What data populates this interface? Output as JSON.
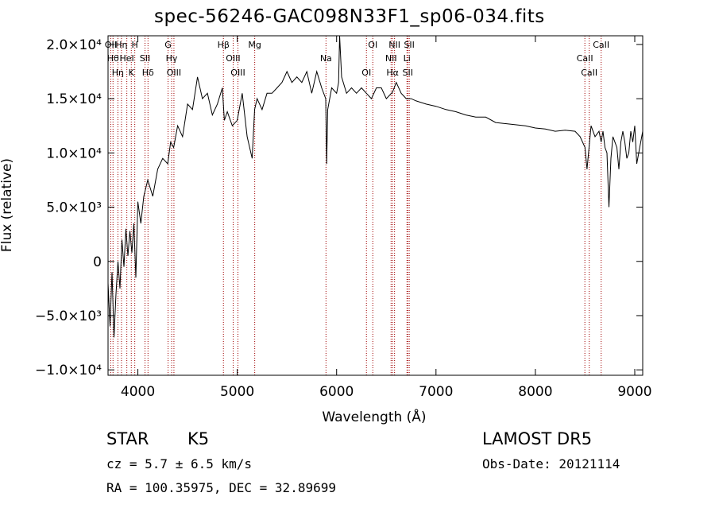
{
  "title": "spec-56246-GAC098N33F1_sp06-034.fits",
  "info": {
    "object_class": "STAR",
    "subclass": "K5",
    "cz": "cz = 5.7 ± 6.5 km/s",
    "radec": "RA = 100.35975, DEC =  32.89699",
    "survey": "LAMOST  DR5",
    "obs_date": "Obs-Date: 20121114"
  },
  "chart_data": {
    "type": "line",
    "xlabel": "Wavelength (Å)",
    "ylabel": "Flux (relative)",
    "xlim": [
      3700,
      9080
    ],
    "ylim": [
      -10500,
      20800
    ],
    "x_ticks": [
      4000,
      5000,
      6000,
      7000,
      8000,
      9000
    ],
    "x_tick_labels": [
      "4000",
      "5000",
      "6000",
      "7000",
      "8000",
      "9000"
    ],
    "y_ticks": [
      -10000,
      -5000,
      0,
      5000,
      10000,
      15000,
      20000
    ],
    "y_tick_labels": [
      "−1.0×10⁴",
      "−5.0×10³",
      "0",
      "5.0×10³",
      "1.0×10⁴",
      "1.5×10⁴",
      "2.0×10⁴"
    ],
    "line_color": "#000000",
    "marker_color": "#a00000",
    "series": [
      {
        "x": [
          3700,
          3720,
          3740,
          3760,
          3780,
          3800,
          3820,
          3840,
          3860,
          3880,
          3900,
          3920,
          3940,
          3960,
          3980,
          4000,
          4030,
          4060,
          4100,
          4150,
          4200,
          4250,
          4300,
          4330,
          4360,
          4400,
          4450,
          4500,
          4550,
          4600,
          4650,
          4700,
          4750,
          4800,
          4850,
          4870,
          4900,
          4950,
          5000,
          5050,
          5100,
          5150,
          5175,
          5200,
          5250,
          5300,
          5350,
          5400,
          5450,
          5500,
          5550,
          5600,
          5650,
          5700,
          5750,
          5800,
          5850,
          5890,
          5900,
          5910,
          5950,
          6000,
          6020,
          6030,
          6050,
          6100,
          6150,
          6200,
          6250,
          6300,
          6350,
          6400,
          6450,
          6500,
          6563,
          6600,
          6650,
          6700,
          6750,
          6800,
          6900,
          7000,
          7100,
          7200,
          7300,
          7400,
          7500,
          7600,
          7700,
          7800,
          7900,
          8000,
          8100,
          8200,
          8300,
          8400,
          8450,
          8500,
          8520,
          8545,
          8560,
          8600,
          8640,
          8662,
          8680,
          8700,
          8720,
          8740,
          8760,
          8780,
          8800,
          8820,
          8840,
          8860,
          8880,
          8900,
          8920,
          8940,
          8960,
          8980,
          9000,
          9020,
          9040,
          9060,
          9080
        ],
        "values": [
          -2000,
          -6000,
          -1000,
          -7000,
          -3000,
          0,
          -2500,
          2000,
          -500,
          3000,
          500,
          2800,
          800,
          3500,
          -1500,
          5500,
          3500,
          6000,
          7500,
          6000,
          8500,
          9500,
          9000,
          11000,
          10500,
          12500,
          11500,
          14500,
          14000,
          17000,
          15000,
          15500,
          13500,
          14500,
          16000,
          13000,
          13800,
          12500,
          13000,
          15500,
          11500,
          9500,
          14000,
          15000,
          14000,
          15500,
          15500,
          16000,
          16500,
          17500,
          16500,
          17000,
          16500,
          17500,
          15500,
          17500,
          16000,
          15000,
          9000,
          14000,
          16000,
          15500,
          16500,
          22000,
          17000,
          15500,
          16000,
          15500,
          16000,
          15500,
          15000,
          16000,
          16000,
          15000,
          15600,
          16500,
          15500,
          15000,
          15000,
          14800,
          14500,
          14300,
          14000,
          13800,
          13500,
          13300,
          13300,
          12800,
          12700,
          12600,
          12500,
          12300,
          12200,
          12000,
          12100,
          12000,
          11500,
          10500,
          8500,
          11000,
          12500,
          11500,
          12000,
          11000,
          12000,
          10500,
          10000,
          5000,
          9500,
          11500,
          11000,
          10500,
          8500,
          11000,
          12000,
          11000,
          9500,
          10000,
          12000,
          11000,
          12500,
          9000,
          10000,
          11000,
          12000
        ]
      }
    ],
    "line_markers": [
      {
        "x": 3727,
        "label": "OII"
      },
      {
        "x": 3750,
        "label": "Hθ"
      },
      {
        "x": 3799,
        "label": "Hη"
      },
      {
        "x": 3835,
        "label": "Hη"
      },
      {
        "x": 3889,
        "label": "HeI"
      },
      {
        "x": 3934,
        "label": "K"
      },
      {
        "x": 3969,
        "label": "H"
      },
      {
        "x": 4072,
        "label": "SII"
      },
      {
        "x": 4102,
        "label": "Hδ"
      },
      {
        "x": 4304,
        "label": "G"
      },
      {
        "x": 4340,
        "label": "Hγ"
      },
      {
        "x": 4363,
        "label": "OIII"
      },
      {
        "x": 4861,
        "label": "Hβ"
      },
      {
        "x": 4959,
        "label": "OIII"
      },
      {
        "x": 5007,
        "label": "OIII"
      },
      {
        "x": 5176,
        "label": "Mg"
      },
      {
        "x": 5893,
        "label": "Na"
      },
      {
        "x": 6300,
        "label": "OI"
      },
      {
        "x": 6364,
        "label": "OI"
      },
      {
        "x": 6548,
        "label": "NII"
      },
      {
        "x": 6563,
        "label": "Hα"
      },
      {
        "x": 6583,
        "label": "NII"
      },
      {
        "x": 6708,
        "label": "Li"
      },
      {
        "x": 6716,
        "label": "SII"
      },
      {
        "x": 6731,
        "label": "SII"
      },
      {
        "x": 8498,
        "label": "CaII"
      },
      {
        "x": 8542,
        "label": "CaII"
      },
      {
        "x": 8662,
        "label": "CaII"
      }
    ]
  }
}
